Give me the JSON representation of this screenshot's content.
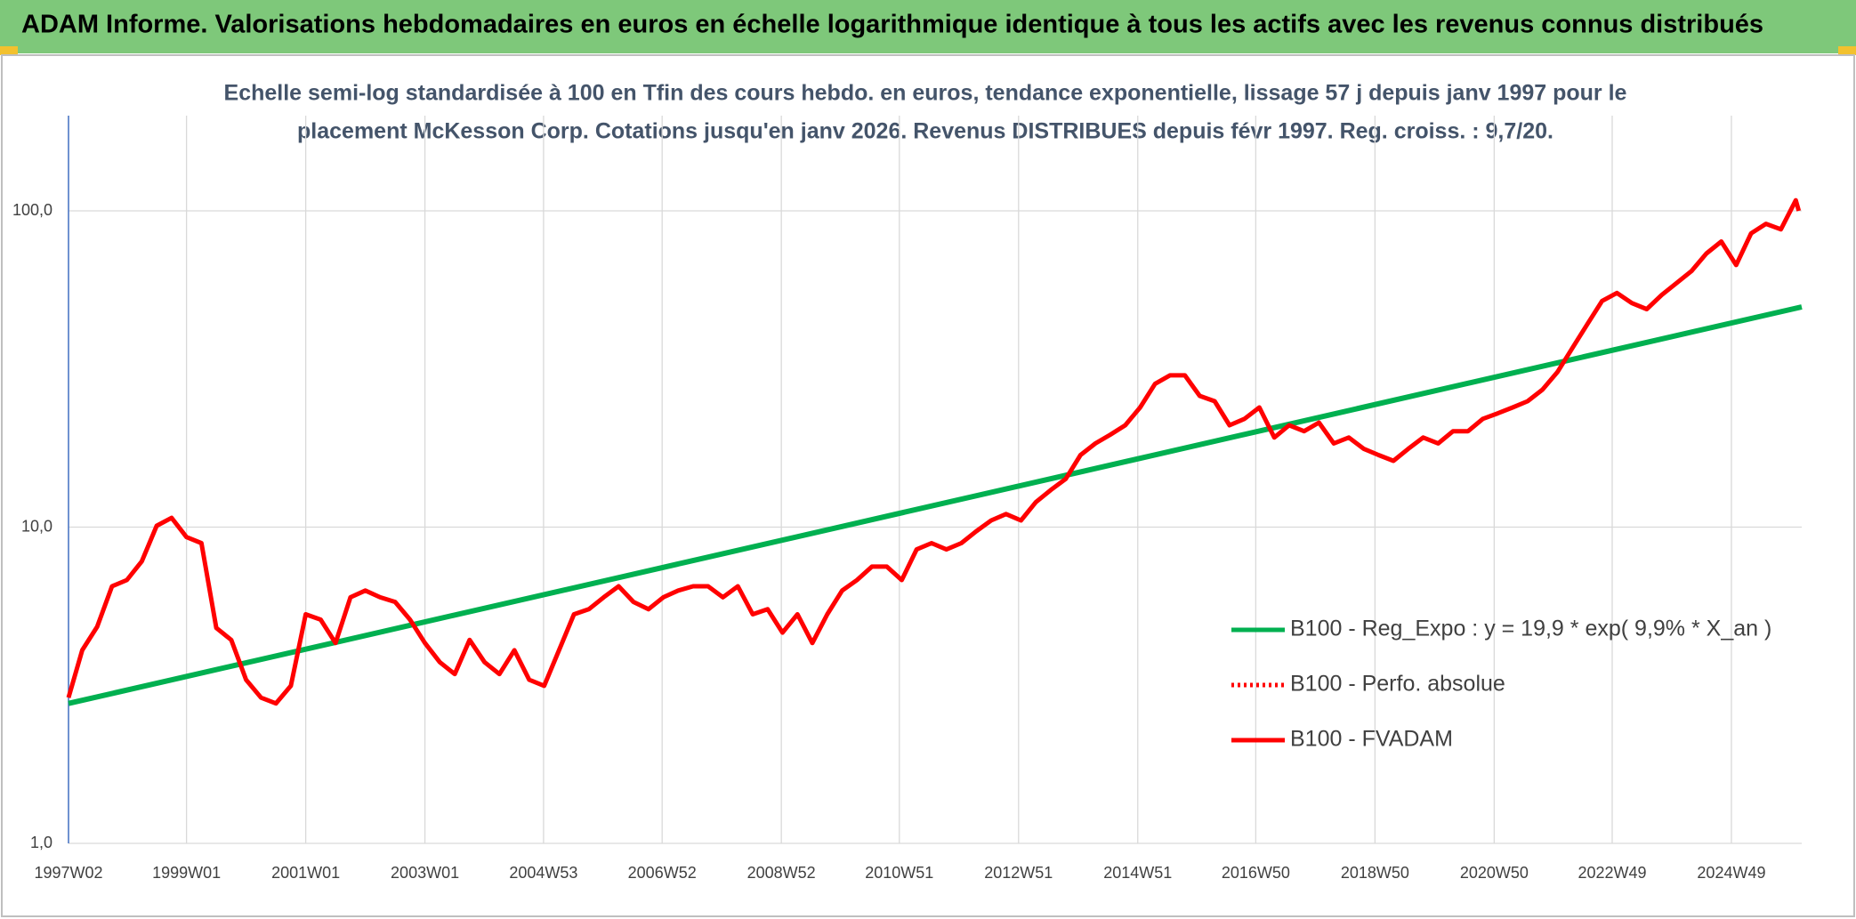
{
  "chart_data": {
    "type": "line",
    "header": "ADAM Informe. Valorisations hebdomadaires en euros en échelle logarithmique identique à tous les actifs avec les revenus connus distribués",
    "subtitle": [
      "Echelle semi-log standardisée à 100 en Tfin des cours hebdo. en euros, tendance exponentielle, lissage 57 j depuis janv 1997 pour le",
      "placement McKesson Corp. Cotations jusqu'en janv 2026. Revenus DISTRIBUES depuis févr 1997. Reg. croiss. : 9,7/20."
    ],
    "log_y": true,
    "grid": true,
    "legend": "right",
    "xlim": [
      1997.02,
      2026.1
    ],
    "xticks": [
      {
        "value": 1997.02,
        "label": "1997W02"
      },
      {
        "value": 1999.0,
        "label": "1999W01"
      },
      {
        "value": 2001.0,
        "label": "2001W01"
      },
      {
        "value": 2003.0,
        "label": "2003W01"
      },
      {
        "value": 2004.99,
        "label": "2004W53"
      },
      {
        "value": 2006.98,
        "label": "2006W52"
      },
      {
        "value": 2008.98,
        "label": "2008W52"
      },
      {
        "value": 2010.96,
        "label": "2010W51"
      },
      {
        "value": 2012.96,
        "label": "2012W51"
      },
      {
        "value": 2014.96,
        "label": "2014W51"
      },
      {
        "value": 2016.94,
        "label": "2016W50"
      },
      {
        "value": 2018.94,
        "label": "2018W50"
      },
      {
        "value": 2020.94,
        "label": "2020W50"
      },
      {
        "value": 2022.92,
        "label": "2022W49"
      },
      {
        "value": 2024.92,
        "label": "2024W49"
      }
    ],
    "ylim": [
      1,
      200
    ],
    "yticks": [
      {
        "value": 1,
        "label": "1,0"
      },
      {
        "value": 10,
        "label": "10,0"
      },
      {
        "value": 100,
        "label": "100,0"
      }
    ],
    "series": [
      {
        "name": "B100 - Reg_Expo : y = 19,9 * exp( 9,9% *  X_an )",
        "color": "#00b050",
        "x": [
          1997.02,
          2026.1
        ],
        "values": [
          2.77,
          49.7
        ]
      },
      {
        "name": "B100 - Perfo. absolue",
        "color": "#ff0000",
        "dash": "dotted"
      },
      {
        "name": "B100 - FVADAM",
        "color": "#ff0000",
        "x": [
          1997.02,
          1997.25,
          1997.5,
          1997.75,
          1998,
          1998.25,
          1998.5,
          1998.75,
          1999,
          1999.25,
          1999.5,
          1999.75,
          2000,
          2000.25,
          2000.5,
          2000.75,
          2001,
          2001.25,
          2001.5,
          2001.75,
          2002,
          2002.25,
          2002.5,
          2002.75,
          2003,
          2003.25,
          2003.5,
          2003.75,
          2004,
          2004.25,
          2004.5,
          2004.75,
          2005,
          2005.25,
          2005.5,
          2005.75,
          2006,
          2006.25,
          2006.5,
          2006.75,
          2007,
          2007.25,
          2007.5,
          2007.75,
          2008,
          2008.25,
          2008.5,
          2008.75,
          2009,
          2009.25,
          2009.5,
          2009.75,
          2010,
          2010.25,
          2010.5,
          2010.75,
          2011,
          2011.25,
          2011.5,
          2011.75,
          2012,
          2012.25,
          2012.5,
          2012.75,
          2013,
          2013.25,
          2013.5,
          2013.75,
          2014,
          2014.25,
          2014.5,
          2014.75,
          2015,
          2015.25,
          2015.5,
          2015.75,
          2016,
          2016.25,
          2016.5,
          2016.75,
          2017,
          2017.25,
          2017.5,
          2017.75,
          2018,
          2018.25,
          2018.5,
          2018.75,
          2019,
          2019.25,
          2019.5,
          2019.75,
          2020,
          2020.25,
          2020.5,
          2020.75,
          2021,
          2021.25,
          2021.5,
          2021.75,
          2022,
          2022.25,
          2022.5,
          2022.75,
          2023,
          2023.25,
          2023.5,
          2023.75,
          2024,
          2024.25,
          2024.5,
          2024.75,
          2025,
          2025.25,
          2025.5,
          2025.75,
          2026,
          2026.05
        ],
        "values": [
          2.89,
          4.08,
          4.84,
          6.5,
          6.8,
          7.8,
          10.1,
          10.7,
          9.3,
          8.9,
          4.8,
          4.4,
          3.29,
          2.89,
          2.77,
          3.15,
          5.3,
          5.1,
          4.3,
          6.0,
          6.3,
          6.0,
          5.8,
          5.1,
          4.3,
          3.74,
          3.43,
          4.4,
          3.74,
          3.43,
          4.08,
          3.29,
          3.15,
          4.08,
          5.3,
          5.5,
          6.0,
          6.5,
          5.8,
          5.5,
          6.0,
          6.3,
          6.5,
          6.5,
          6.0,
          6.5,
          5.3,
          5.5,
          4.64,
          5.3,
          4.3,
          5.3,
          6.3,
          6.8,
          7.5,
          7.5,
          6.8,
          8.5,
          8.9,
          8.5,
          8.9,
          9.7,
          10.5,
          11.0,
          10.5,
          12.0,
          13.1,
          14.2,
          16.9,
          18.4,
          19.6,
          21.0,
          23.9,
          28.4,
          30.2,
          30.2,
          26.0,
          25.0,
          21.0,
          22.0,
          23.9,
          19.2,
          21.0,
          20.1,
          21.4,
          18.4,
          19.2,
          17.7,
          16.9,
          16.2,
          17.7,
          19.2,
          18.4,
          20.1,
          20.1,
          22.0,
          22.9,
          23.9,
          25.0,
          27.2,
          30.9,
          36.8,
          43.7,
          51.9,
          55.0,
          51.1,
          48.9,
          54.2,
          59.1,
          64.5,
          73.3,
          80.0,
          67.4,
          84.9,
          91.0,
          87.4,
          108,
          100
        ]
      }
    ]
  }
}
